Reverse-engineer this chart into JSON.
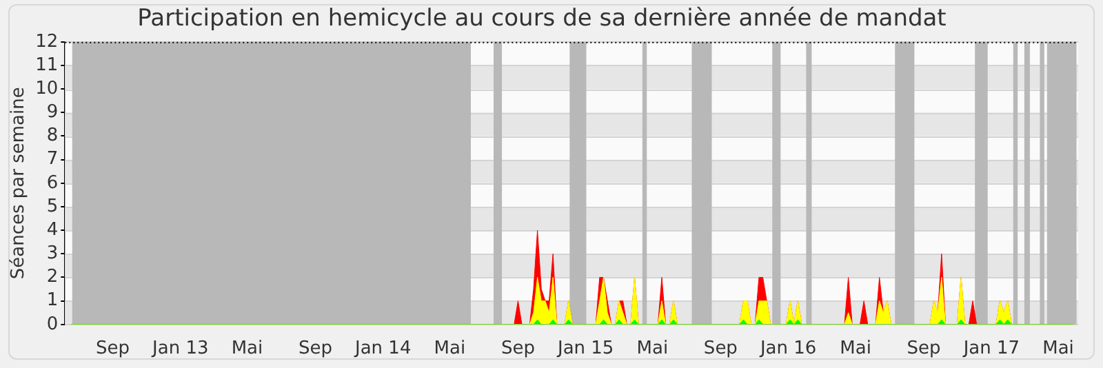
{
  "chart_data": {
    "type": "area",
    "title": "Participation en hemicycle au cours de sa dernière année de mandat",
    "ylabel": "Séances par semaine",
    "x": [
      "2012-06-18",
      "2014-08-25",
      "2014-09-01",
      "2014-09-08",
      "2014-09-22",
      "2014-09-29",
      "2014-10-06",
      "2014-10-13",
      "2014-10-20",
      "2014-10-27",
      "2014-11-03",
      "2014-11-10",
      "2014-11-24",
      "2014-12-01",
      "2014-12-08",
      "2015-01-19",
      "2015-01-26",
      "2015-02-02",
      "2015-02-09",
      "2015-02-16",
      "2015-02-23",
      "2015-03-02",
      "2015-03-09",
      "2015-03-16",
      "2015-03-23",
      "2015-03-30",
      "2015-04-06",
      "2015-05-11",
      "2015-05-18",
      "2015-05-25",
      "2015-06-01",
      "2015-06-08",
      "2015-06-15",
      "2015-10-05",
      "2015-10-12",
      "2015-10-19",
      "2015-10-26",
      "2015-11-02",
      "2015-11-09",
      "2015-11-16",
      "2015-11-23",
      "2015-11-30",
      "2015-12-28",
      "2016-01-04",
      "2016-01-11",
      "2016-01-18",
      "2016-01-25",
      "2016-04-11",
      "2016-04-18",
      "2016-04-25",
      "2016-05-09",
      "2016-05-16",
      "2016-05-23",
      "2016-06-06",
      "2016-06-13",
      "2016-06-20",
      "2016-06-27",
      "2016-07-04",
      "2016-09-12",
      "2016-09-19",
      "2016-09-26",
      "2016-10-03",
      "2016-10-10",
      "2016-10-31",
      "2016-11-07",
      "2016-11-14",
      "2016-11-21",
      "2016-11-28",
      "2016-12-05",
      "2017-01-09",
      "2017-01-16",
      "2017-01-23",
      "2017-01-30",
      "2017-02-06",
      "2017-05-29"
    ],
    "series": [
      {
        "color": "#ff0000",
        "values": [
          0,
          0,
          1,
          0,
          0,
          1.5,
          4,
          1.5,
          1,
          1,
          3,
          0,
          0,
          1,
          0,
          0,
          2,
          2,
          1,
          0,
          0,
          1,
          1,
          0,
          0,
          2,
          0,
          0,
          2,
          0,
          0,
          1,
          0,
          0,
          1,
          1,
          0,
          0,
          2,
          2,
          1,
          0,
          0,
          1,
          0,
          1,
          0,
          0,
          2,
          0,
          0,
          1,
          0,
          0,
          2,
          0.5,
          1,
          0,
          0,
          1,
          0.5,
          3,
          0,
          0,
          2,
          0,
          0,
          1,
          0,
          0,
          1,
          0.5,
          1,
          0,
          0
        ]
      },
      {
        "color": "#ffff00",
        "values": [
          0,
          0,
          0,
          0,
          0,
          0.5,
          2,
          1,
          1,
          0.5,
          2,
          0,
          0,
          1,
          0,
          0,
          1,
          2,
          0.5,
          0,
          0,
          1,
          0.5,
          0,
          0,
          2,
          0,
          0,
          1,
          0,
          0,
          1,
          0,
          0,
          1,
          1,
          0,
          0,
          1,
          1,
          1,
          0,
          0,
          1,
          0,
          1,
          0,
          0,
          0.5,
          0,
          0,
          0,
          0,
          0,
          1,
          0.5,
          1,
          0,
          0,
          1,
          0.5,
          2,
          0,
          0,
          2,
          0,
          0,
          0,
          0,
          0,
          1,
          0.5,
          1,
          0,
          0
        ]
      },
      {
        "color": "#00ff00",
        "values": [
          0,
          0,
          0,
          0,
          0,
          0,
          0.2,
          0,
          0,
          0,
          0.2,
          0,
          0,
          0.2,
          0,
          0,
          0,
          0.2,
          0,
          0,
          0,
          0.2,
          0,
          0,
          0,
          0.2,
          0,
          0,
          0.2,
          0,
          0,
          0.2,
          0,
          0,
          0.2,
          0,
          0,
          0,
          0.2,
          0,
          0,
          0,
          0,
          0.2,
          0,
          0.2,
          0,
          0,
          0,
          0,
          0,
          0,
          0,
          0,
          0,
          0,
          0,
          0,
          0,
          0,
          0,
          0.2,
          0,
          0,
          0.2,
          0,
          0,
          0,
          0,
          0,
          0.2,
          0,
          0.2,
          0,
          0
        ]
      }
    ],
    "xlim": [
      "2012-06-07",
      "2017-06-06"
    ],
    "xticks": [
      {
        "value": "2012-09-01",
        "label": "Sep"
      },
      {
        "value": "2013-01-01",
        "label": "Jan 13"
      },
      {
        "value": "2013-05-01",
        "label": "Mai"
      },
      {
        "value": "2013-09-01",
        "label": "Sep"
      },
      {
        "value": "2014-01-01",
        "label": "Jan 14"
      },
      {
        "value": "2014-05-01",
        "label": "Mai"
      },
      {
        "value": "2014-09-01",
        "label": "Sep"
      },
      {
        "value": "2015-01-01",
        "label": "Jan 15"
      },
      {
        "value": "2015-05-01",
        "label": "Mai"
      },
      {
        "value": "2015-09-01",
        "label": "Sep"
      },
      {
        "value": "2016-01-01",
        "label": "Jan 16"
      },
      {
        "value": "2016-05-01",
        "label": "Mai"
      },
      {
        "value": "2016-09-01",
        "label": "Sep"
      },
      {
        "value": "2017-01-01",
        "label": "Jan 17"
      },
      {
        "value": "2017-05-01",
        "label": "Mai"
      }
    ],
    "ylim": [
      0,
      12
    ],
    "yticks": [
      0,
      1,
      2,
      3,
      4,
      5,
      6,
      7,
      8,
      9,
      10,
      11,
      12
    ],
    "grid": "y",
    "bands": [
      {
        "axis": "x",
        "from": "2012-06-20",
        "to": "2014-06-08",
        "color": "#b8b8b8"
      },
      {
        "axis": "x",
        "from": "2014-07-19",
        "to": "2014-08-03",
        "color": "#b8b8b8"
      },
      {
        "axis": "x",
        "from": "2014-12-03",
        "to": "2015-01-02",
        "color": "#b8b8b8"
      },
      {
        "axis": "x",
        "from": "2015-04-13",
        "to": "2015-04-21",
        "color": "#b8b8b8"
      },
      {
        "axis": "x",
        "from": "2015-07-11",
        "to": "2015-08-16",
        "color": "#b8b8b8"
      },
      {
        "axis": "x",
        "from": "2015-12-03",
        "to": "2015-12-18",
        "color": "#b8b8b8"
      },
      {
        "axis": "x",
        "from": "2016-02-02",
        "to": "2016-02-12",
        "color": "#b8b8b8"
      },
      {
        "axis": "x",
        "from": "2016-07-11",
        "to": "2016-08-15",
        "color": "#b8b8b8"
      },
      {
        "axis": "x",
        "from": "2016-12-02",
        "to": "2016-12-25",
        "color": "#b8b8b8"
      },
      {
        "axis": "x",
        "from": "2017-02-09",
        "to": "2017-02-17",
        "color": "#b8b8b8"
      },
      {
        "axis": "x",
        "from": "2017-03-01",
        "to": "2017-03-11",
        "color": "#b8b8b8"
      },
      {
        "axis": "x",
        "from": "2017-03-29",
        "to": "2017-04-06",
        "color": "#b8b8b8"
      },
      {
        "axis": "x",
        "from": "2017-04-11",
        "to": "2017-06-03",
        "color": "#b8b8b8"
      }
    ]
  }
}
